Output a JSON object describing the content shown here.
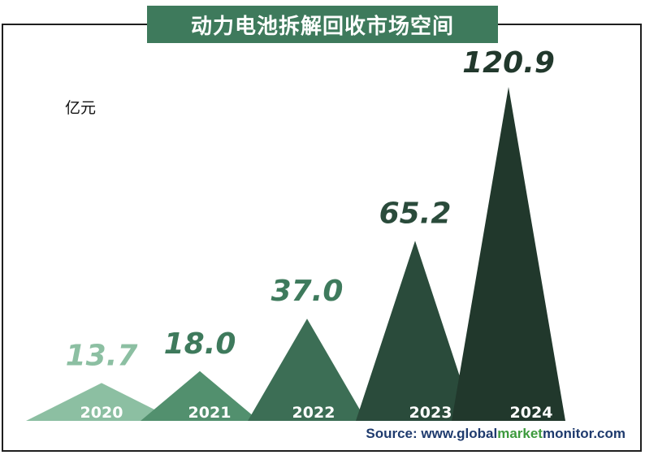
{
  "chart_data": {
    "type": "bar",
    "title": "动力电池拆解回收市场空间",
    "ylabel": "亿元",
    "categories": [
      "2020",
      "2021",
      "2022",
      "2023",
      "2024"
    ],
    "values": [
      13.7,
      18.0,
      37.0,
      65.2,
      120.9
    ],
    "value_labels": [
      "13.7",
      "18.0",
      "37.0",
      "65.2",
      "120.9"
    ],
    "colors": [
      "#8cbfa2",
      "#52906e",
      "#3c6e55",
      "#2a4b3b",
      "#21382c"
    ],
    "label_colors": [
      "#8cbfa2",
      "#3e7a5c",
      "#3e7a5c",
      "#2a4b3b",
      "#21382c"
    ],
    "ylim": [
      0,
      130
    ],
    "grid": false
  },
  "source": {
    "prefix": "Source: www.",
    "part1": "global",
    "part2": "market",
    "part3": "monitor",
    "suffix": ".com"
  }
}
